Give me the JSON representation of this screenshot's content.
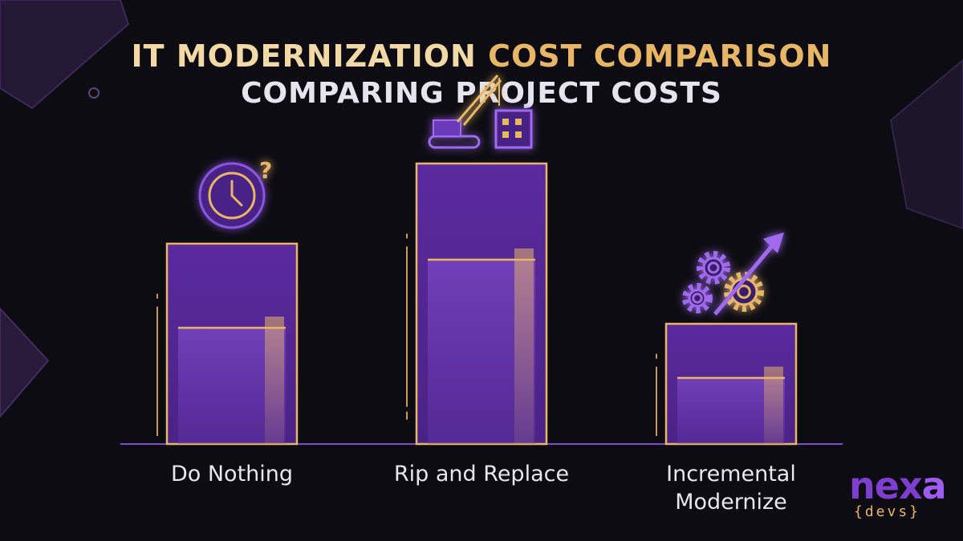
{
  "title": {
    "part1": "IT MODERNIZATION ",
    "part2": "COST COMPARISON",
    "subtitle": "COMPARING PROJECT COSTS"
  },
  "colors": {
    "accent_gold": "#e7b667",
    "bar_purple": "#5a2a9c",
    "background": "#0d0c12"
  },
  "chart_data": {
    "type": "bar",
    "categories": [
      "Do Nothing",
      "Rip and Replace",
      "Incremental\nModernize"
    ],
    "values": [
      100,
      140,
      60
    ],
    "inner_values": [
      58,
      92,
      33
    ],
    "icons": [
      "clock-question-icon",
      "crane-demolition-icon",
      "gears-growth-arrow-icon"
    ],
    "ylim": [
      0,
      160
    ],
    "xlabel": "",
    "ylabel": "",
    "grid": false
  },
  "logo": {
    "word_main": "nex",
    "word_accent": "a",
    "sub": "{devs}"
  }
}
